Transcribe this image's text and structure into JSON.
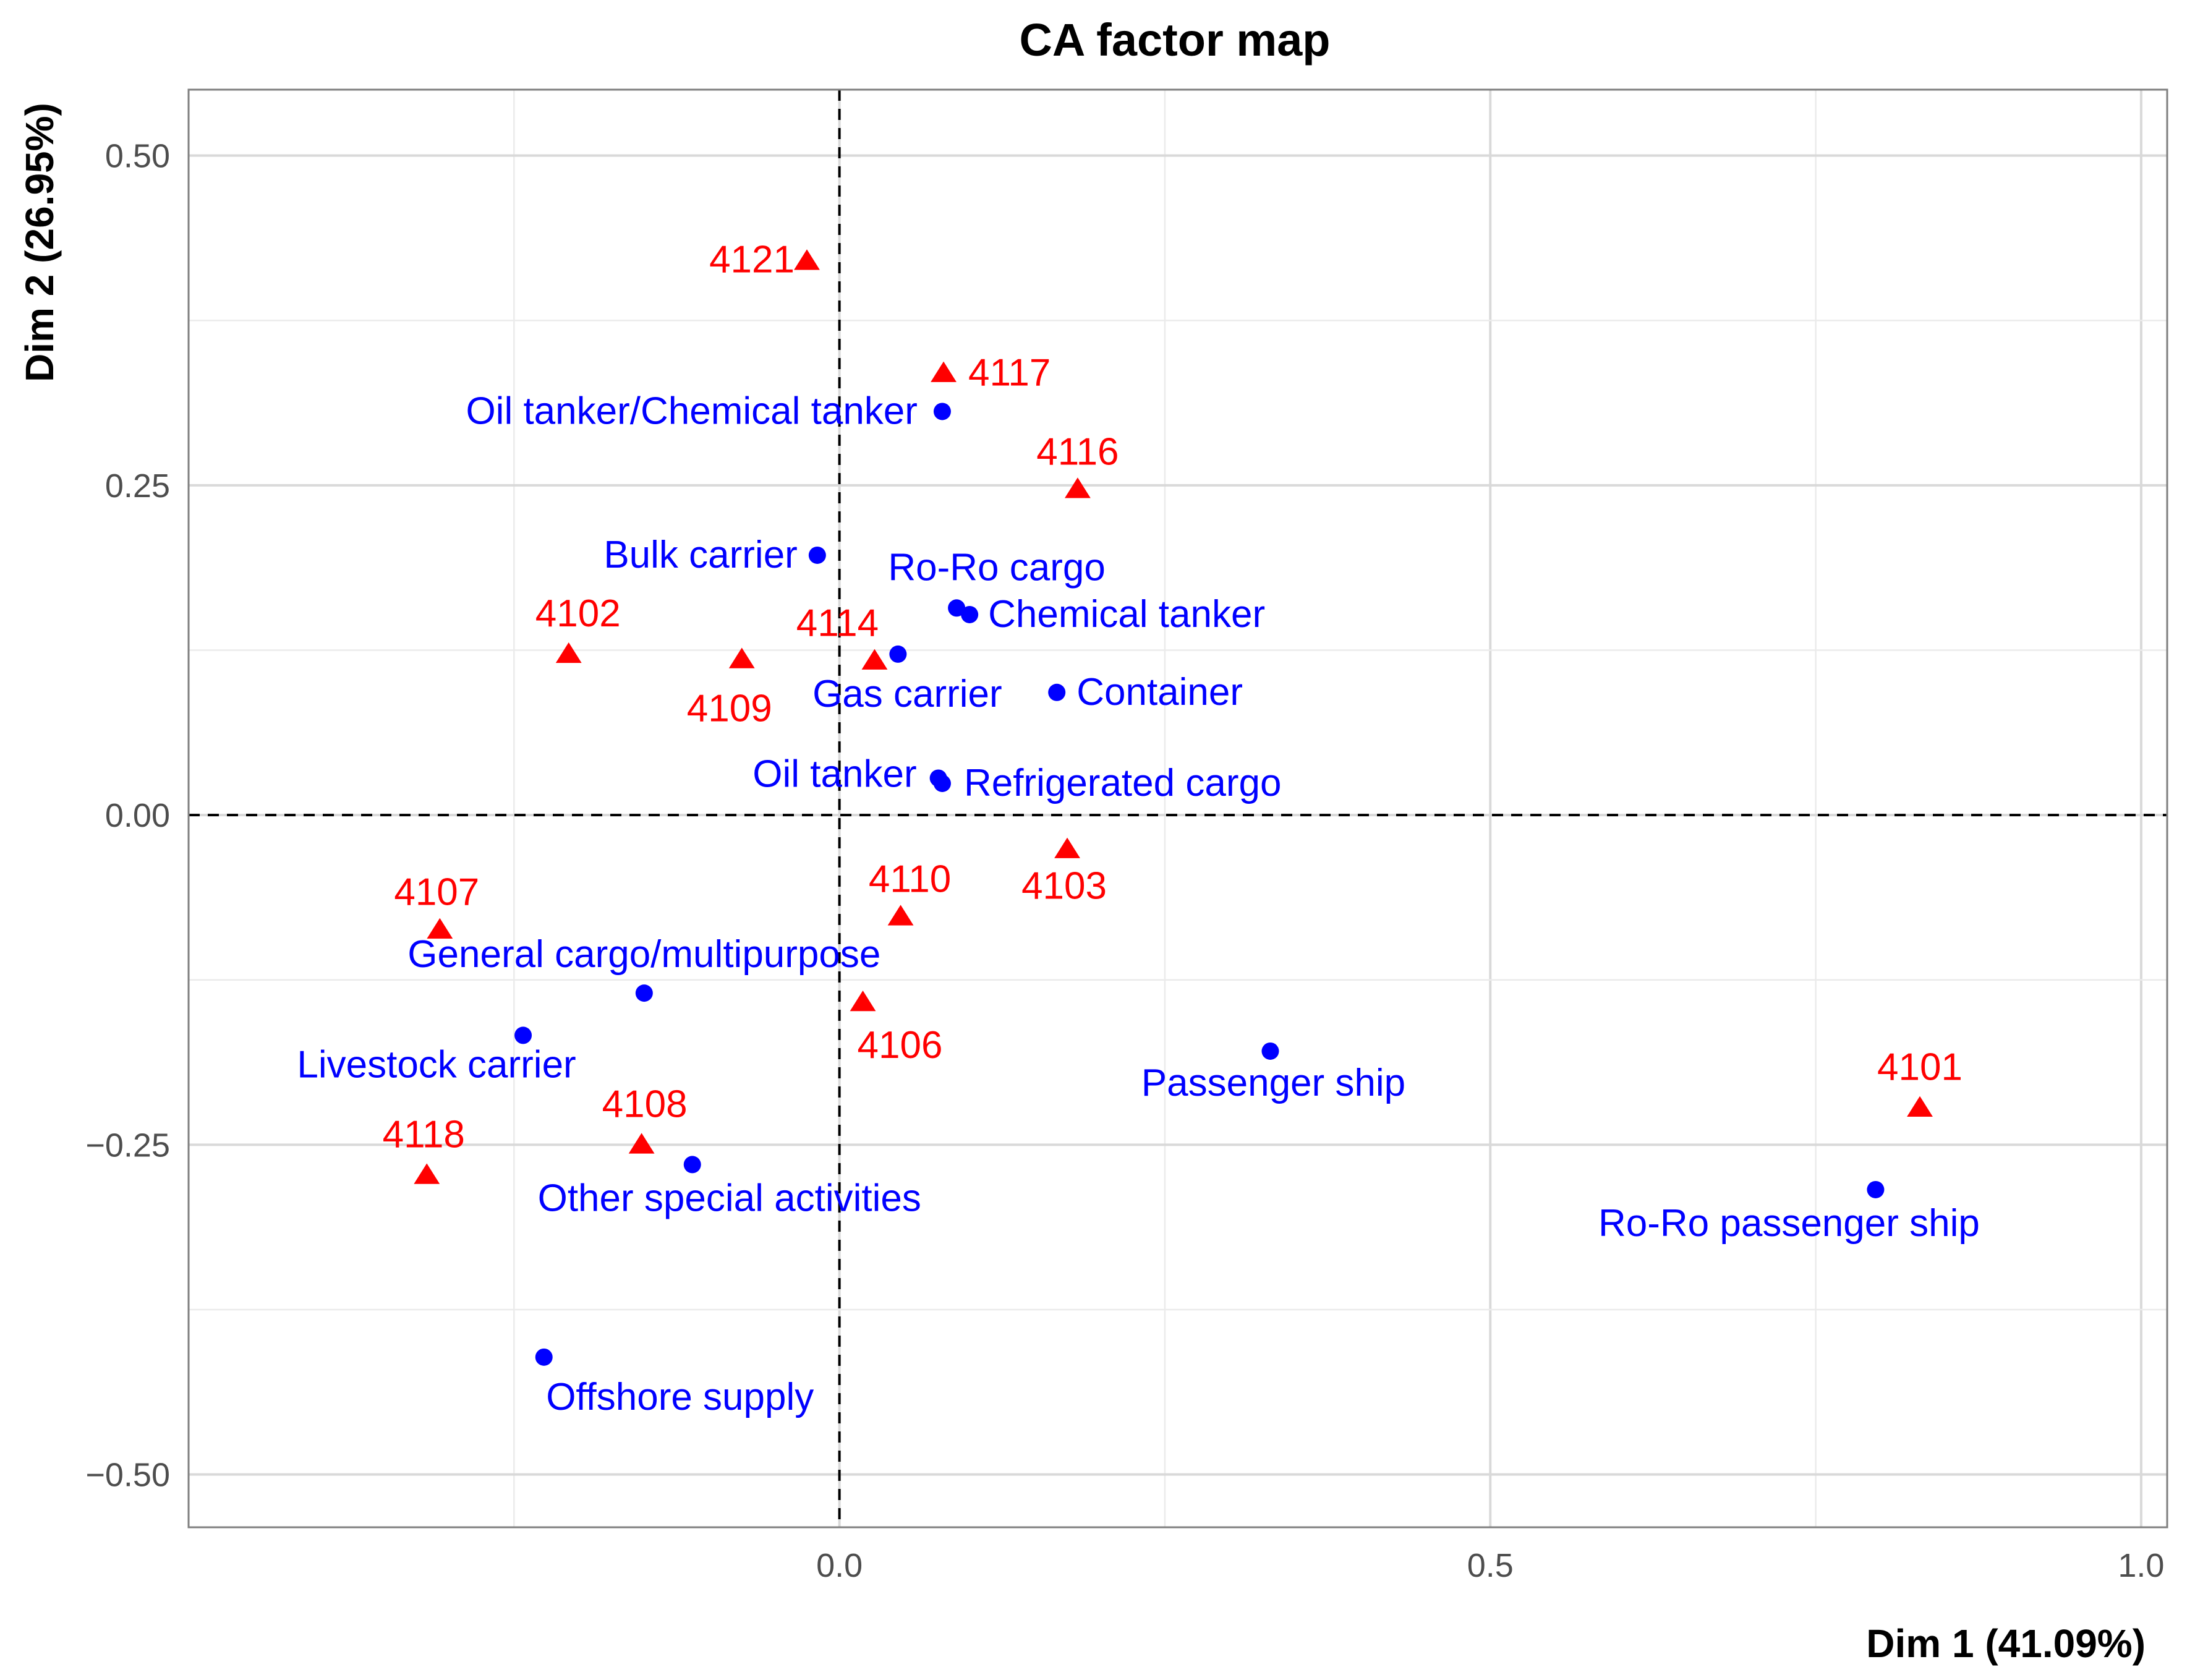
{
  "chart_data": {
    "type": "scatter",
    "title": "CA factor map",
    "xlabel": "Dim 1 (41.09%)",
    "ylabel": "Dim 2 (26.95%)",
    "xlim": [
      -0.5,
      1.02
    ],
    "ylim": [
      -0.54,
      0.55
    ],
    "x_ticks": [
      0.0,
      0.5,
      1.0
    ],
    "x_tick_labels": [
      "0.0",
      "0.5",
      "1.0"
    ],
    "y_ticks": [
      -0.5,
      -0.25,
      0.0,
      0.25,
      0.5
    ],
    "y_tick_labels": [
      "−0.50",
      "−0.25",
      "0.00",
      "0.25",
      "0.50"
    ],
    "grid": true,
    "series": [
      {
        "marker": "triangle",
        "color": "#ff0000",
        "points": [
          {
            "label": "4121",
            "x": -0.025,
            "y": 0.42
          },
          {
            "label": "4117",
            "x": 0.08,
            "y": 0.335
          },
          {
            "label": "4116",
            "x": 0.183,
            "y": 0.247
          },
          {
            "label": "4102",
            "x": -0.208,
            "y": 0.122
          },
          {
            "label": "4109",
            "x": -0.075,
            "y": 0.118
          },
          {
            "label": "4114",
            "x": 0.027,
            "y": 0.117
          },
          {
            "label": "4103",
            "x": 0.175,
            "y": -0.026
          },
          {
            "label": "4110",
            "x": 0.047,
            "y": -0.077
          },
          {
            "label": "4107",
            "x": -0.307,
            "y": -0.087
          },
          {
            "label": "4106",
            "x": 0.018,
            "y": -0.142
          },
          {
            "label": "4101",
            "x": 0.83,
            "y": -0.222
          },
          {
            "label": "4108",
            "x": -0.152,
            "y": -0.25
          },
          {
            "label": "4118",
            "x": -0.317,
            "y": -0.273
          }
        ]
      },
      {
        "marker": "circle",
        "color": "#0000ff",
        "points": [
          {
            "label": "Oil tanker/Chemical tanker",
            "x": 0.079,
            "y": 0.306
          },
          {
            "label": "Bulk carrier",
            "x": -0.017,
            "y": 0.197
          },
          {
            "label": "Ro-Ro cargo",
            "x": 0.09,
            "y": 0.157
          },
          {
            "label": "Chemical tanker",
            "x": 0.1,
            "y": 0.152
          },
          {
            "label": "Gas carrier",
            "x": 0.045,
            "y": 0.122
          },
          {
            "label": "Container",
            "x": 0.167,
            "y": 0.093
          },
          {
            "label": "Oil tanker",
            "x": 0.076,
            "y": 0.028
          },
          {
            "label": "Refrigerated cargo",
            "x": 0.079,
            "y": 0.024
          },
          {
            "label": "General cargo/multipurpose",
            "x": -0.15,
            "y": -0.135
          },
          {
            "label": "Livestock carrier",
            "x": -0.243,
            "y": -0.167
          },
          {
            "label": "Passenger ship",
            "x": 0.331,
            "y": -0.179
          },
          {
            "label": "Other special activities",
            "x": -0.113,
            "y": -0.265
          },
          {
            "label": "Ro-Ro passenger ship",
            "x": 0.796,
            "y": -0.284
          },
          {
            "label": "Offshore supply",
            "x": -0.227,
            "y": -0.411
          }
        ]
      }
    ]
  }
}
